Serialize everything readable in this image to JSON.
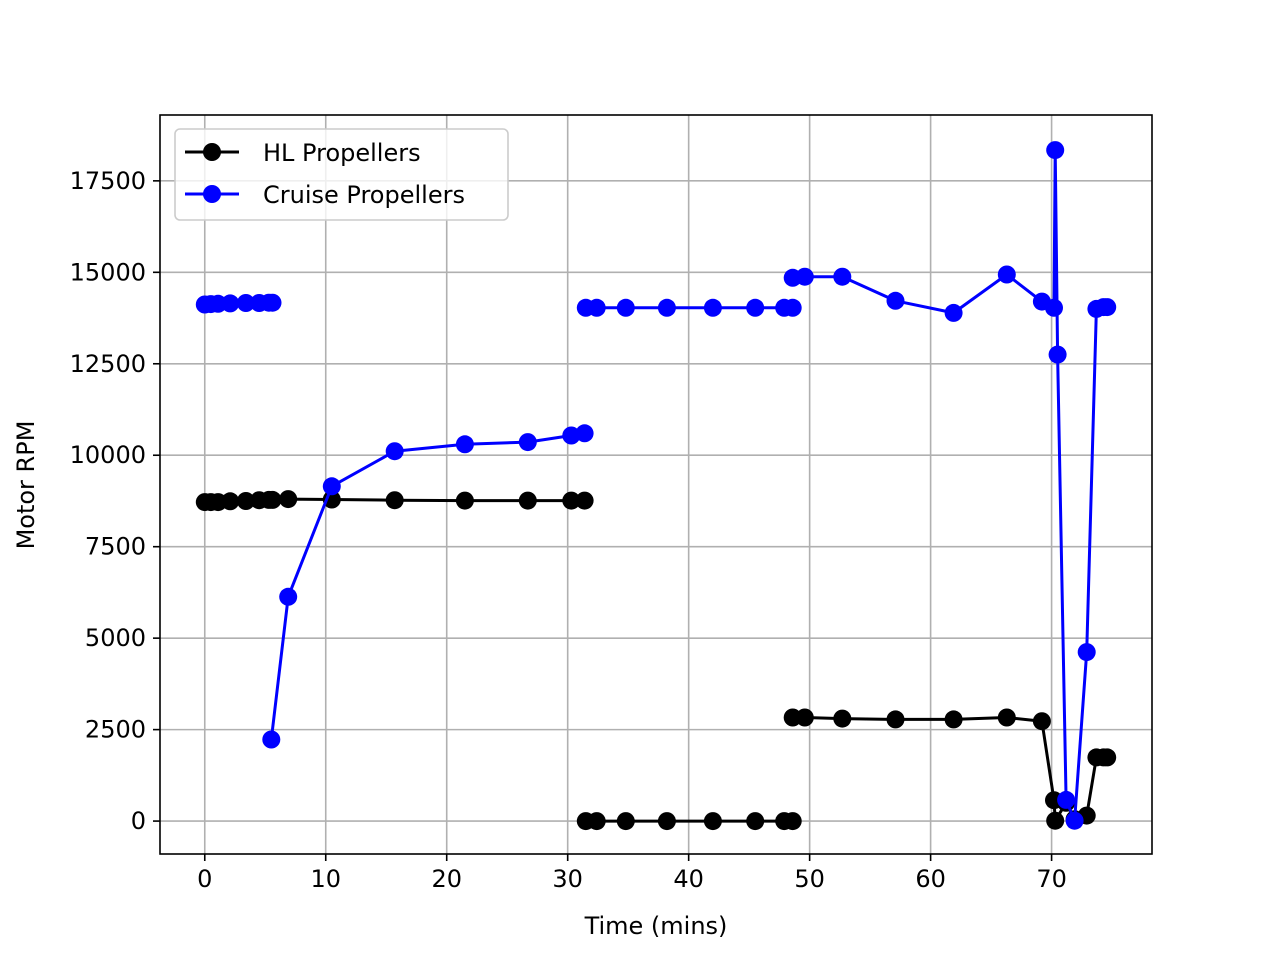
{
  "chart_data": {
    "type": "line",
    "title": "",
    "xlabel": "Time (mins)",
    "ylabel": "Motor RPM",
    "xlim": [
      -3.7,
      78.3
    ],
    "ylim": [
      -900,
      19300
    ],
    "xticks": [
      0,
      10,
      20,
      30,
      40,
      50,
      60,
      70
    ],
    "yticks": [
      0,
      2500,
      5000,
      7500,
      10000,
      12500,
      15000,
      17500
    ],
    "xtick_labels": [
      "0",
      "10",
      "20",
      "30",
      "40",
      "50",
      "60",
      "70"
    ],
    "ytick_labels": [
      "0",
      "2500",
      "5000",
      "7500",
      "10000",
      "12500",
      "15000",
      "17500"
    ],
    "grid": true,
    "legend": "top-left",
    "series": [
      {
        "name": "HL Propellers",
        "color": "#000000",
        "segments": [
          [
            [
              0,
              8720
            ],
            [
              0.5,
              8720
            ],
            [
              1.1,
              8720
            ],
            [
              2.1,
              8740
            ],
            [
              3.4,
              8750
            ],
            [
              4.5,
              8770
            ],
            [
              5.3,
              8780
            ],
            [
              5.6,
              8780
            ],
            [
              6.9,
              8800
            ],
            [
              10.5,
              8790
            ],
            [
              15.7,
              8770
            ],
            [
              21.5,
              8760
            ],
            [
              26.7,
              8760
            ],
            [
              30.3,
              8760
            ],
            [
              31.4,
              8760
            ]
          ],
          [
            [
              31.5,
              0
            ],
            [
              32.4,
              0
            ],
            [
              34.8,
              0
            ],
            [
              38.2,
              0
            ],
            [
              42.0,
              0
            ],
            [
              45.5,
              0
            ],
            [
              47.9,
              0
            ],
            [
              48.6,
              0
            ]
          ],
          [
            [
              48.6,
              2830
            ],
            [
              49.6,
              2830
            ],
            [
              52.7,
              2800
            ],
            [
              57.1,
              2780
            ],
            [
              61.9,
              2780
            ],
            [
              66.3,
              2830
            ],
            [
              69.2,
              2730
            ],
            [
              70.2,
              570
            ],
            [
              70.3,
              10
            ],
            [
              71.2,
              500
            ],
            [
              71.9,
              50
            ],
            [
              72.9,
              150
            ],
            [
              73.7,
              1740
            ],
            [
              74.3,
              1740
            ],
            [
              74.6,
              1740
            ]
          ]
        ]
      },
      {
        "name": "Cruise Propellers",
        "color": "#0000ff",
        "segments": [
          [
            [
              0,
              14120
            ],
            [
              0.5,
              14130
            ],
            [
              1.1,
              14140
            ],
            [
              2.1,
              14150
            ],
            [
              3.4,
              14160
            ],
            [
              4.5,
              14160
            ],
            [
              5.3,
              14170
            ],
            [
              5.6,
              14170
            ]
          ],
          [
            [
              5.5,
              2230
            ],
            [
              6.9,
              6130
            ],
            [
              10.5,
              9150
            ],
            [
              15.7,
              10110
            ],
            [
              21.5,
              10300
            ],
            [
              26.7,
              10360
            ],
            [
              30.3,
              10540
            ],
            [
              31.4,
              10600
            ]
          ],
          [
            [
              31.5,
              14030
            ],
            [
              32.4,
              14030
            ],
            [
              34.8,
              14030
            ],
            [
              38.2,
              14030
            ],
            [
              42.0,
              14030
            ],
            [
              45.5,
              14030
            ],
            [
              47.9,
              14030
            ],
            [
              48.6,
              14030
            ]
          ],
          [
            [
              48.6,
              14850
            ],
            [
              49.6,
              14880
            ],
            [
              52.7,
              14880
            ],
            [
              57.1,
              14220
            ],
            [
              61.9,
              13890
            ],
            [
              66.3,
              14940
            ],
            [
              69.2,
              14200
            ],
            [
              70.2,
              14030
            ],
            [
              70.3,
              18340
            ],
            [
              70.5,
              12750
            ],
            [
              71.2,
              580
            ],
            [
              71.9,
              10
            ],
            [
              72.9,
              4620
            ],
            [
              73.7,
              14000
            ],
            [
              74.3,
              14050
            ],
            [
              74.6,
              14050
            ]
          ]
        ]
      }
    ]
  }
}
